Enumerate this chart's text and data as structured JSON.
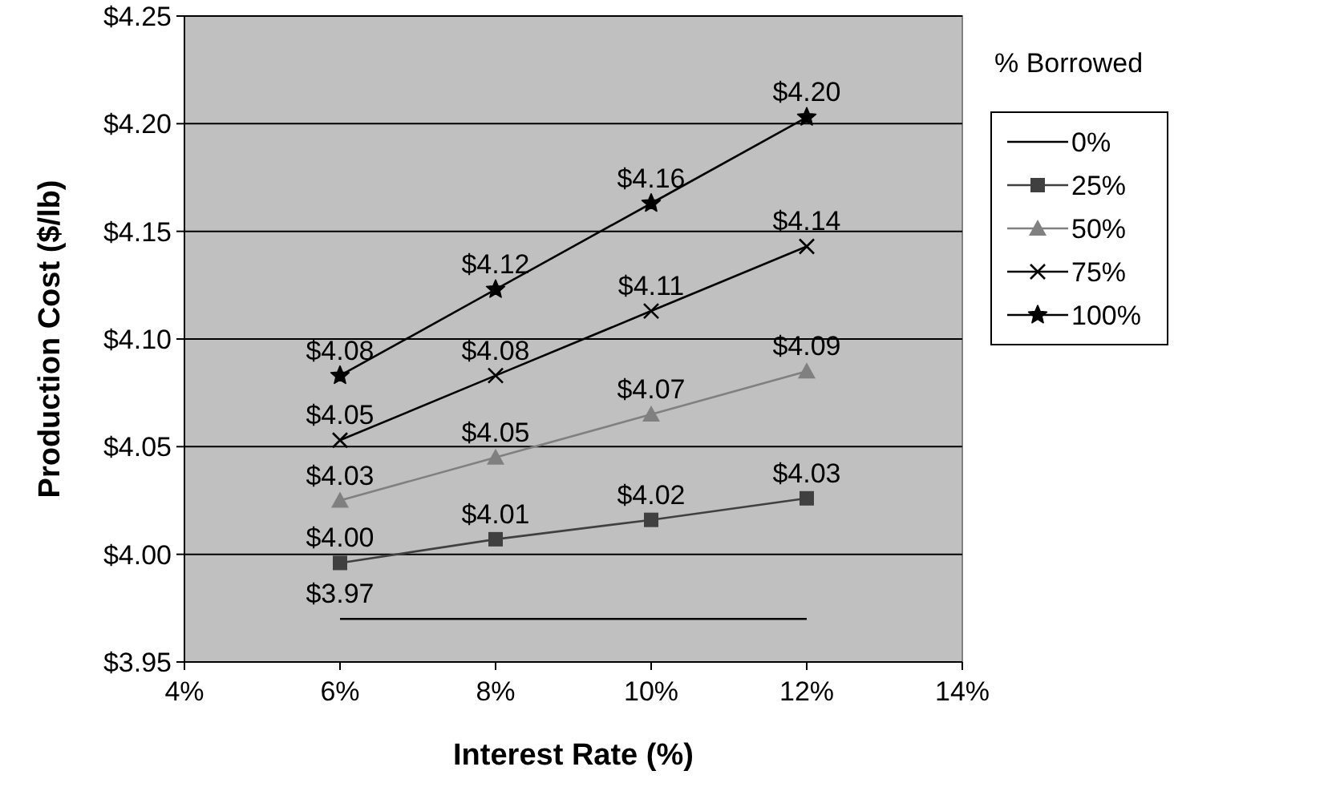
{
  "chart_data": {
    "type": "line",
    "xlabel": "Interest Rate (%)",
    "ylabel": "Production Cost ($/lb)",
    "legend_title": "% Borrowed",
    "x": [
      6,
      8,
      10,
      12
    ],
    "series": [
      {
        "name": "0%",
        "color": "#000000",
        "marker": "none",
        "values": [
          3.97,
          3.97,
          3.97,
          3.97
        ],
        "value_labels": [
          "$3.97",
          null,
          null,
          null
        ]
      },
      {
        "name": "25%",
        "color": "#404040",
        "marker": "square",
        "values": [
          3.996,
          4.007,
          4.016,
          4.026
        ],
        "value_labels": [
          "$4.00",
          "$4.01",
          "$4.02",
          "$4.03"
        ]
      },
      {
        "name": "50%",
        "color": "#808080",
        "marker": "triangle",
        "values": [
          4.025,
          4.045,
          4.065,
          4.085
        ],
        "value_labels": [
          "$4.03",
          "$4.05",
          "$4.07",
          "$4.09"
        ]
      },
      {
        "name": "75%",
        "color": "#000000",
        "marker": "cross",
        "values": [
          4.053,
          4.083,
          4.113,
          4.143
        ],
        "value_labels": [
          "$4.05",
          "$4.08",
          "$4.11",
          "$4.14"
        ]
      },
      {
        "name": "100%",
        "color": "#000000",
        "marker": "star",
        "values": [
          4.083,
          4.123,
          4.163,
          4.203
        ],
        "value_labels": [
          "$4.08",
          "$4.12",
          "$4.16",
          "$4.20"
        ]
      }
    ],
    "xlim": [
      4,
      14
    ],
    "xticks": [
      {
        "value": 4,
        "label": "4%"
      },
      {
        "value": 6,
        "label": "6%"
      },
      {
        "value": 8,
        "label": "8%"
      },
      {
        "value": 10,
        "label": "10%"
      },
      {
        "value": 12,
        "label": "12%"
      },
      {
        "value": 14,
        "label": "14%"
      }
    ],
    "ylim": [
      3.95,
      4.25
    ],
    "yticks": [
      {
        "value": 3.95,
        "label": "$3.95"
      },
      {
        "value": 4.0,
        "label": "$4.00"
      },
      {
        "value": 4.05,
        "label": "$4.05"
      },
      {
        "value": 4.1,
        "label": "$4.10"
      },
      {
        "value": 4.15,
        "label": "$4.15"
      },
      {
        "value": 4.2,
        "label": "$4.20"
      },
      {
        "value": 4.25,
        "label": "$4.25"
      }
    ],
    "grid": "y",
    "legend": "right",
    "line_style": "solid"
  }
}
